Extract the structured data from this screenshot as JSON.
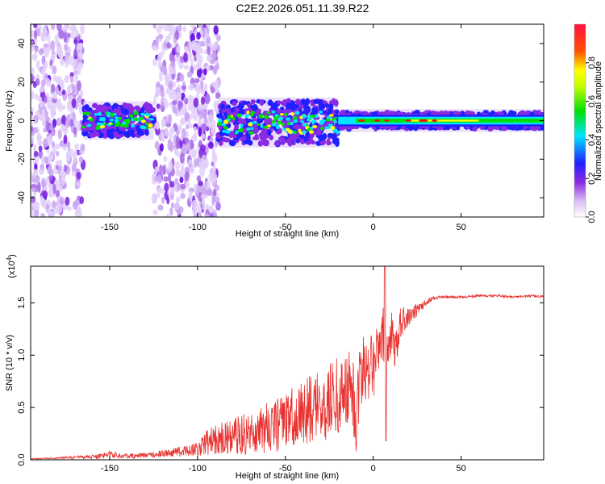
{
  "title": "C2E2.2026.051.11.39.R22",
  "colors": {
    "snr_line": "#e8322f",
    "axis": "#000000",
    "spec_purple": "#8a2be2",
    "spec_blue": "#2020ff",
    "spec_cyan": "#00e5ff",
    "spec_green": "#00e000",
    "spec_yellow": "#ffff00",
    "spec_red": "#ff0000"
  },
  "chart_data": [
    {
      "type": "heatmap",
      "name": "spectrogram",
      "xlabel": "Height of straight line (km)",
      "ylabel": "Frequency (Hz)",
      "xlim": [
        -195,
        97
      ],
      "ylim": [
        -50,
        50
      ],
      "xticks": [
        -150,
        -100,
        -50,
        0,
        50
      ],
      "xtick_labels": [
        "-150",
        "-100",
        "-50",
        "0",
        "50"
      ],
      "yticks": [
        -40,
        -20,
        0,
        20,
        40
      ],
      "ytick_labels": [
        "-40",
        "-20",
        "0",
        "20",
        "40"
      ],
      "colorbar": {
        "label": "Normalized spectral amplitude",
        "range": [
          0,
          1
        ],
        "ticks": [
          0.0,
          0.2,
          0.4,
          0.6,
          0.8
        ],
        "tick_labels": [
          "0.0",
          "0.2",
          "0.4",
          "0.6",
          "0.8"
        ]
      },
      "regions": [
        {
          "x": [
            -195,
            -165
          ],
          "f": [
            -50,
            50
          ],
          "amplitude": 0.15,
          "kind": "scatter"
        },
        {
          "x": [
            -165,
            -125
          ],
          "f": [
            -8,
            8
          ],
          "amplitude": 0.35,
          "kind": "band"
        },
        {
          "x": [
            -125,
            -88
          ],
          "f": [
            -50,
            50
          ],
          "amplitude": 0.18,
          "kind": "scatter"
        },
        {
          "x": [
            -88,
            -20
          ],
          "f": [
            -12,
            10
          ],
          "amplitude": 0.4,
          "kind": "band"
        },
        {
          "x": [
            -20,
            97
          ],
          "f": [
            -4,
            4
          ],
          "amplitude": 0.5,
          "kind": "band"
        }
      ]
    },
    {
      "type": "line",
      "name": "snr",
      "xlabel": "Height of straight line (km)",
      "ylabel": "SNR (10 * v/v)",
      "scale_label": "(x10",
      "scale_exponent": "4",
      "scale_suffix": ")",
      "xlim": [
        -195,
        97
      ],
      "ylim": [
        0,
        1.85
      ],
      "xticks": [
        -150,
        -100,
        -50,
        0,
        50
      ],
      "xtick_labels": [
        "-150",
        "-100",
        "-50",
        "0",
        "50"
      ],
      "yticks": [
        0.0,
        0.5,
        1.0,
        1.5
      ],
      "ytick_labels": [
        "0.0",
        "0.5",
        "1.0",
        "1.5"
      ],
      "series": [
        {
          "name": "SNR",
          "x": [
            -195,
            -180,
            -165,
            -155,
            -150,
            -145,
            -140,
            -130,
            -120,
            -110,
            -100,
            -95,
            -90,
            -85,
            -80,
            -75,
            -70,
            -65,
            -60,
            -55,
            -50,
            -45,
            -40,
            -35,
            -30,
            -25,
            -20,
            -15,
            -12,
            -10,
            -8,
            -5,
            0,
            3,
            6,
            7,
            8,
            10,
            13,
            15,
            20,
            25,
            30,
            35,
            40,
            50,
            60,
            70,
            80,
            90,
            97
          ],
          "y": [
            0.01,
            0.02,
            0.03,
            0.04,
            0.07,
            0.05,
            0.04,
            0.05,
            0.07,
            0.09,
            0.13,
            0.2,
            0.24,
            0.26,
            0.28,
            0.3,
            0.32,
            0.35,
            0.38,
            0.4,
            0.45,
            0.5,
            0.55,
            0.58,
            0.62,
            0.68,
            0.72,
            0.8,
            0.75,
            0.55,
            0.85,
            1.0,
            1.05,
            1.15,
            1.3,
            0.2,
            1.2,
            1.3,
            1.1,
            1.35,
            1.4,
            1.45,
            1.52,
            1.55,
            1.56,
            1.56,
            1.57,
            1.57,
            1.56,
            1.57,
            1.56
          ],
          "noise": [
            0.005,
            0.01,
            0.02,
            0.03,
            0.05,
            0.03,
            0.03,
            0.03,
            0.04,
            0.06,
            0.1,
            0.15,
            0.18,
            0.2,
            0.22,
            0.24,
            0.26,
            0.28,
            0.3,
            0.33,
            0.36,
            0.38,
            0.4,
            0.42,
            0.44,
            0.46,
            0.48,
            0.5,
            0.45,
            0.5,
            0.5,
            0.45,
            0.45,
            0.4,
            0.35,
            0.3,
            0.35,
            0.3,
            0.25,
            0.2,
            0.12,
            0.08,
            0.04,
            0.02,
            0.015,
            0.015,
            0.015,
            0.015,
            0.015,
            0.015,
            0.015
          ]
        }
      ]
    }
  ]
}
